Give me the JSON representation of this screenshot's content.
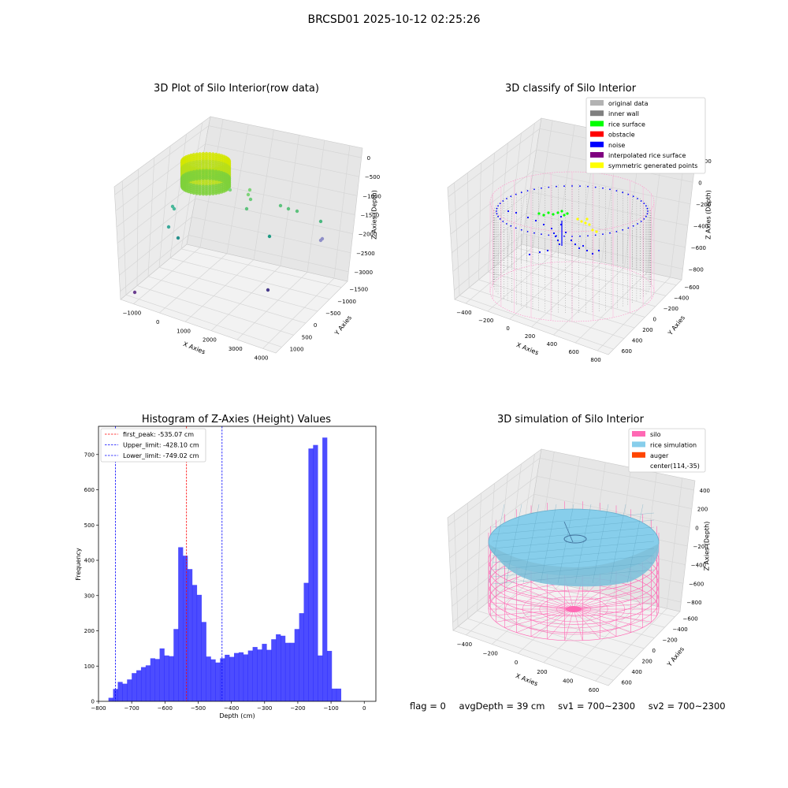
{
  "figure_title": "BRCSD01 2025-10-12 02:25:26",
  "panels": {
    "raw": {
      "title": "3D Plot of Silo Interior(row data)",
      "xlabel": "X Axies",
      "ylabel": "Y Axies",
      "zlabel": "Z Axies (Depth)",
      "xticks": [
        "−1000",
        "0",
        "1000",
        "2000",
        "3000",
        "4000"
      ],
      "yticks": [
        "1000",
        "500",
        "0",
        "−500",
        "−1000",
        "−1500"
      ],
      "zticks": [
        "0",
        "−500",
        "−1000",
        "−1500",
        "−2000",
        "−2500",
        "−3000"
      ]
    },
    "classify": {
      "title": "3D classify of Silo Interior",
      "xlabel": "X Axies",
      "ylabel": "Y Axies",
      "zlabel": "Z Axies (Depth)",
      "xticks": [
        "−400",
        "−200",
        "0",
        "200",
        "400",
        "600",
        "800"
      ],
      "yticks": [
        "600",
        "400",
        "200",
        "0",
        "−200",
        "−400",
        "−600"
      ],
      "zticks": [
        "200",
        "0",
        "−200",
        "−400",
        "−600",
        "−800"
      ],
      "legend": [
        {
          "label": "original data",
          "color": "#b3b3b3"
        },
        {
          "label": "inner wall",
          "color": "#808080"
        },
        {
          "label": "rice surface",
          "color": "#00ff00"
        },
        {
          "label": "obstacle",
          "color": "#ff0000"
        },
        {
          "label": "noise",
          "color": "#0000ff"
        },
        {
          "label": "interpolated rice surface",
          "color": "#800080"
        },
        {
          "label": "symmetric generated points",
          "color": "#ffff00"
        }
      ]
    },
    "simulation": {
      "title": "3D simulation of Silo Interior",
      "xlabel": "X Axies",
      "ylabel": "Y Axies",
      "zlabel": "Z Axies (Depth)",
      "xticks": [
        "−400",
        "−200",
        "0",
        "200",
        "400",
        "600"
      ],
      "yticks": [
        "600",
        "400",
        "200",
        "0",
        "−200",
        "−400",
        "−600"
      ],
      "zticks": [
        "400",
        "200",
        "0",
        "−200",
        "−400",
        "−600",
        "−800"
      ],
      "legend": [
        {
          "label": "silo",
          "color": "#ff69b4"
        },
        {
          "label": "rice simulation",
          "color": "#87ceeb"
        },
        {
          "label": "auger",
          "color": "#ff4500"
        },
        {
          "label": "center(114,-35)",
          "color": ""
        }
      ]
    }
  },
  "chart_data": [
    {
      "type": "bar",
      "title": "Histogram of Z-Axies (Height) Values",
      "xlabel": "Depth (cm)",
      "ylabel": "Frequency",
      "xlim": [
        -800,
        35
      ],
      "ylim": [
        0,
        780
      ],
      "xticks": [
        -800,
        -700,
        -600,
        -500,
        -400,
        -300,
        -200,
        -100,
        0
      ],
      "yticks": [
        0,
        100,
        200,
        300,
        400,
        500,
        600,
        700
      ],
      "bar_color": "#0000ff",
      "bin_start": -770,
      "bin_width": 14,
      "values": [
        10,
        35,
        55,
        50,
        62,
        80,
        88,
        97,
        102,
        122,
        120,
        150,
        130,
        128,
        205,
        437,
        413,
        375,
        330,
        302,
        225,
        127,
        119,
        110,
        122,
        132,
        126,
        137,
        139,
        133,
        144,
        154,
        147,
        163,
        146,
        176,
        190,
        186,
        166,
        166,
        205,
        250,
        336,
        717,
        727,
        130,
        748,
        143,
        36,
        36
      ],
      "vlines": [
        {
          "label": "first_peak: -535.07 cm",
          "x": -535.07,
          "color": "#ff0000"
        },
        {
          "label": "Upper_limit: -428.10 cm",
          "x": -428.1,
          "color": "#0000ff"
        },
        {
          "label": "Lower_limit: -749.02 cm",
          "x": -749.02,
          "color": "#0000ff"
        }
      ],
      "legend_position": "top-left"
    }
  ],
  "footer": {
    "flag": "flag = 0",
    "avg_depth": "avgDepth = 39 cm",
    "sv1": "sv1 = 700~2300",
    "sv2": "sv2 = 700~2300"
  }
}
